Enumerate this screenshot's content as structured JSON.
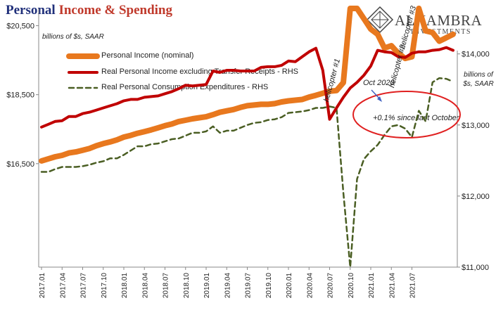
{
  "header": {
    "title_part1": "Personal ",
    "title_part2": "Income & Spending"
  },
  "logo": {
    "name": "ALHAMBRA",
    "sub": "INVESTMENTS",
    "icon": "diamond-lattice-icon"
  },
  "colors": {
    "income": "#e8781e",
    "real_income": "#c00000",
    "consumption": "#4a5e23",
    "annotation": "#e02020"
  },
  "chart_data": {
    "type": "line",
    "left_units": "billions of $s, SAAR",
    "right_units": "billions of $s, SAAR",
    "ylim_left": [
      13500,
      21000
    ],
    "yticks_left": [
      {
        "v": 16500,
        "label": "$16,500"
      },
      {
        "v": 18500,
        "label": "$18,500"
      },
      {
        "v": 20500,
        "label": "$20,500"
      }
    ],
    "ylim_right": [
      11000,
      14640
    ],
    "yticks_right": [
      {
        "v": 11000,
        "label": "$11,000"
      },
      {
        "v": 12000,
        "label": "$12,000"
      },
      {
        "v": 13000,
        "label": "$13,000"
      },
      {
        "v": 14000,
        "label": "$14,000"
      }
    ],
    "x_start": "2017.01",
    "x_tick_labels": [
      "2017.01",
      "2017.04",
      "2017.07",
      "2017.10",
      "2018.01",
      "2018.04",
      "2018.07",
      "2018.10",
      "2019.01",
      "2019.04",
      "2019.07",
      "2019.10",
      "2020.01",
      "2020.04",
      "2020.07",
      "2020.10",
      "2021.01",
      "2021.04",
      "2021.07"
    ],
    "x_tick_step": 3,
    "series": [
      {
        "name": "Personal Income (nominal)",
        "axis": "left",
        "style": "thick",
        "values": [
          16580,
          16640,
          16700,
          16740,
          16810,
          16840,
          16890,
          16940,
          17020,
          17080,
          17130,
          17190,
          17270,
          17320,
          17380,
          17430,
          17480,
          17540,
          17600,
          17650,
          17720,
          17760,
          17800,
          17830,
          17860,
          17920,
          17990,
          18030,
          18070,
          18130,
          18180,
          18200,
          18220,
          18220,
          18240,
          18290,
          18320,
          18340,
          18360,
          18430,
          18480,
          18540,
          18600,
          18620,
          18850,
          22650,
          21150,
          20700,
          20400,
          20250,
          19850,
          19920,
          19700,
          19550,
          19600,
          21500,
          20350,
          20300,
          20050,
          20150,
          20250
        ]
      },
      {
        "name": "Real Personal Income excluding Transfer Receipts - RHS",
        "axis": "right",
        "style": "medium",
        "values": [
          12970,
          13010,
          13050,
          13060,
          13120,
          13120,
          13160,
          13180,
          13210,
          13240,
          13270,
          13300,
          13340,
          13360,
          13360,
          13390,
          13400,
          13410,
          13440,
          13470,
          13510,
          13560,
          13550,
          13560,
          13570,
          13760,
          13740,
          13770,
          13770,
          13760,
          13760,
          13760,
          13810,
          13820,
          13820,
          13840,
          13900,
          13890,
          13960,
          14030,
          14080,
          13770,
          13080,
          13240,
          13390,
          13520,
          13600,
          13700,
          13830,
          14050,
          14030,
          14020,
          13960,
          13950,
          14010,
          14030,
          14030,
          14050,
          14060,
          14090,
          14050
        ]
      },
      {
        "name": "Real Personal Consumption Expenditures - RHS",
        "axis": "right",
        "style": "dashed",
        "values": [
          12340,
          12340,
          12380,
          12410,
          12410,
          12410,
          12420,
          12440,
          12470,
          12490,
          12530,
          12530,
          12580,
          12640,
          12700,
          12700,
          12730,
          12740,
          12770,
          12800,
          12810,
          12850,
          12890,
          12890,
          12910,
          12980,
          12890,
          12920,
          12920,
          12960,
          13000,
          13030,
          13040,
          13070,
          13080,
          13110,
          13170,
          13180,
          13190,
          13210,
          13240,
          13240,
          13260,
          13240,
          12050,
          10970,
          12240,
          12520,
          12630,
          12720,
          12860,
          12980,
          13000,
          12950,
          12830,
          13200,
          13050,
          13600,
          13660,
          13650,
          13610
        ]
      }
    ],
    "annotations": [
      {
        "id": "helicopter1",
        "text": "helicopter #1",
        "x_index": 45
      },
      {
        "id": "helicopter2",
        "text": "helicopter #2",
        "x_index": 55
      },
      {
        "id": "helicopter3",
        "text": "helicopter #3",
        "x_index": 60
      },
      {
        "id": "oct2020",
        "text": "Oct 2020"
      },
      {
        "id": "since_oct",
        "text": "+0.1% since last October"
      }
    ]
  }
}
